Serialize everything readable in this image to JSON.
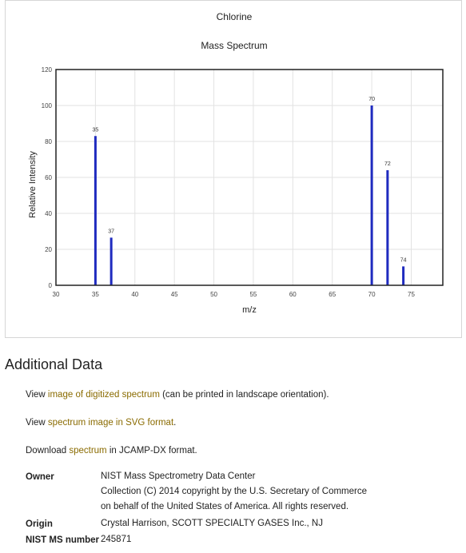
{
  "chart_data": {
    "type": "bar",
    "title": "Chlorine",
    "subtitle": "Mass Spectrum",
    "xlabel": "m/z",
    "ylabel": "Relative Intensity",
    "xlim": [
      30,
      79
    ],
    "ylim": [
      0,
      120
    ],
    "xticks": [
      30,
      35,
      40,
      45,
      50,
      55,
      60,
      65,
      70,
      75
    ],
    "yticks": [
      0,
      20,
      40,
      60,
      80,
      100,
      120
    ],
    "grid": true,
    "bar_color": "#1f2bbf",
    "peaks": [
      {
        "x": 35,
        "y": 83,
        "label": "35"
      },
      {
        "x": 37,
        "y": 26.5,
        "label": "37"
      },
      {
        "x": 70,
        "y": 100,
        "label": "70"
      },
      {
        "x": 72,
        "y": 64,
        "label": "72"
      },
      {
        "x": 74,
        "y": 10.5,
        "label": "74"
      }
    ]
  },
  "additional": {
    "title": "Additional Data",
    "line1": {
      "pre": "View ",
      "link": "image of digitized spectrum",
      "post": " (can be printed in landscape orientation)."
    },
    "line2": {
      "pre": "View ",
      "link": "spectrum image in SVG format",
      "post": "."
    },
    "line3": {
      "pre": "Download ",
      "link": "spectrum",
      "post": " in JCAMP-DX format."
    }
  },
  "meta": {
    "owner_label": "Owner",
    "owner_lines": [
      "NIST Mass Spectrometry Data Center",
      "Collection (C) 2014 copyright by the U.S. Secretary of Commerce",
      "on behalf of the United States of America. All rights reserved."
    ],
    "origin_label": "Origin",
    "origin_value": "Crystal Harrison, SCOTT SPECIALTY GASES Inc., NJ",
    "nist_label": "NIST MS number",
    "nist_value": "245871"
  }
}
